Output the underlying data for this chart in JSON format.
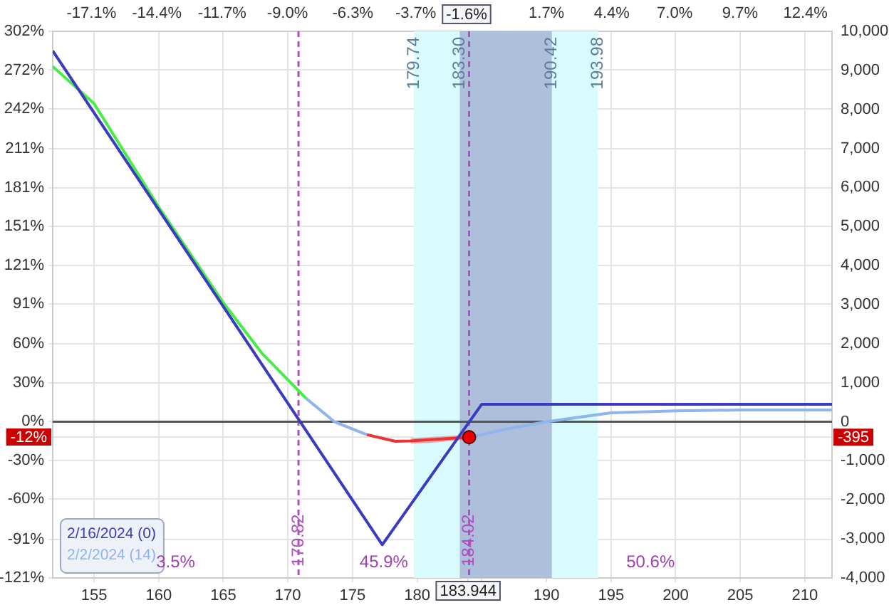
{
  "chart_data": {
    "type": "line",
    "xlim": [
      151.8,
      212.1
    ],
    "xticks": [
      155,
      160,
      165,
      170,
      175,
      180,
      {
        "value": 185,
        "label": null
      },
      190,
      195,
      200,
      205,
      210,
      {
        "value": 183.944,
        "label": "183.944"
      }
    ],
    "x2lim": [
      -18.7,
      13.5
    ],
    "x2ticks": [
      {
        "value": -17.1,
        "label": "-17.1%"
      },
      {
        "value": -14.4,
        "label": "-14.4%"
      },
      {
        "value": -11.7,
        "label": "-11.7%"
      },
      {
        "value": -9.0,
        "label": "-9.0%"
      },
      {
        "value": -6.3,
        "label": "-6.3%"
      },
      {
        "value": -3.7,
        "label": "-3.7%"
      },
      {
        "value": 1.7,
        "label": "1.7%"
      },
      {
        "value": 4.4,
        "label": "4.4%"
      },
      {
        "value": 7.0,
        "label": "7.0%"
      },
      {
        "value": 9.7,
        "label": "9.7%"
      },
      {
        "value": 12.4,
        "label": "12.4%"
      },
      {
        "value": -1.6,
        "label": "-1.6%"
      }
    ],
    "ylim": [
      -121,
      302
    ],
    "yticks": [
      {
        "value": -121,
        "label": "-121%"
      },
      {
        "value": -91,
        "label": "-91%"
      },
      {
        "value": -60,
        "label": "-60%"
      },
      {
        "value": -30,
        "label": "-30%"
      },
      {
        "value": 0,
        "label": "0%"
      },
      {
        "value": 30,
        "label": "30%"
      },
      {
        "value": 60,
        "label": "60%"
      },
      {
        "value": 91,
        "label": "91%"
      },
      {
        "value": 121,
        "label": "121%"
      },
      {
        "value": 151,
        "label": "151%"
      },
      {
        "value": 181,
        "label": "181%"
      },
      {
        "value": 211,
        "label": "211%"
      },
      {
        "value": 242,
        "label": "242%"
      },
      {
        "value": 272,
        "label": "272%"
      },
      {
        "value": 302,
        "label": "302%"
      },
      {
        "value": -12,
        "label": "-12%"
      }
    ],
    "y2lim": [
      -4000,
      10000
    ],
    "y2ticks": [
      {
        "value": -4000,
        "label": "-4,000"
      },
      {
        "value": -3000,
        "label": "-3,000"
      },
      {
        "value": -2000,
        "label": "-2,000"
      },
      {
        "value": -1000,
        "label": "-1,000"
      },
      0,
      {
        "value": 1000,
        "label": "1,000"
      },
      {
        "value": 2000,
        "label": "2,000"
      },
      {
        "value": 3000,
        "label": "3,000"
      },
      {
        "value": 4000,
        "label": "4,000"
      },
      {
        "value": 5000,
        "label": "5,000"
      },
      {
        "value": 6000,
        "label": "6,000"
      },
      {
        "value": 7000,
        "label": "7,000"
      },
      {
        "value": 8000,
        "label": "8,000"
      },
      {
        "value": 9000,
        "label": "9,000"
      },
      {
        "value": 10000,
        "label": "10,000"
      },
      {
        "value": -395,
        "label": "-395"
      }
    ],
    "grid": true,
    "legend": "bottom left",
    "bands": [
      {
        "axis": "x",
        "from": 179.74,
        "to": 193.98,
        "color": "#d9fbfd"
      },
      {
        "axis": "x",
        "from": 183.3,
        "to": 190.42,
        "color": "#aebfdc"
      }
    ],
    "ref_lines": [
      {
        "axis": "x",
        "value": 170.82,
        "label": "170.82",
        "color": "#b050c0",
        "line_style": "dashed"
      },
      {
        "axis": "x",
        "value": 184.02,
        "label": "184.02",
        "color": "#b050c0",
        "line_style": "dashed"
      },
      {
        "axis": "y2",
        "value": 0,
        "color": "#555555",
        "line_style": "solid"
      }
    ],
    "annotations": [
      {
        "text": "179.74",
        "x": 179.74
      },
      {
        "text": "183.30",
        "x": 183.3
      },
      {
        "text": "190.42",
        "x": 190.42
      },
      {
        "text": "193.98",
        "x": 193.98
      },
      "3.5%",
      "45.9%",
      "50.6%"
    ],
    "series": [
      {
        "name": "2/16/2024 (0)",
        "axis": "y2",
        "color": "#3b3bbf",
        "x": [
          151.8,
          177.3,
          185,
          212.1
        ],
        "values": [
          9500,
          -3150,
          450,
          450
        ]
      },
      {
        "axis": "y2",
        "color": "#44ee44",
        "x": [
          151.8,
          155,
          160,
          165,
          168,
          171.4
        ],
        "values": [
          9100,
          8150,
          5500,
          3050,
          1750,
          600
        ]
      },
      {
        "name": "2/2/2024 (14)",
        "axis": "y2",
        "color": "#8fb4ee",
        "x": [
          171.4,
          173.6,
          176.1
        ],
        "values": [
          600,
          0,
          -330
        ]
      },
      {
        "axis": "y2",
        "color": "#ee3333",
        "x": [
          176.1,
          178.3,
          179.5,
          181,
          184.02
        ],
        "values": [
          -330,
          -500,
          -490,
          -460,
          -395
        ],
        "lower": [
          null,
          null,
          -560,
          -540,
          -450
        ],
        "upper": [
          null,
          null,
          -420,
          -390,
          -330
        ]
      },
      {
        "axis": "y2",
        "color": "#8fb4ee",
        "x": [
          184.02,
          184.4,
          187,
          190,
          195,
          200,
          205,
          212.1
        ],
        "values": [
          -395,
          -370,
          -180,
          0,
          230,
          280,
          300,
          300
        ]
      },
      {
        "type": "scatter",
        "axis": "y2",
        "color": "#ee0000",
        "marker": "circle",
        "x": [
          184.02
        ],
        "values": [
          -395
        ]
      }
    ]
  }
}
